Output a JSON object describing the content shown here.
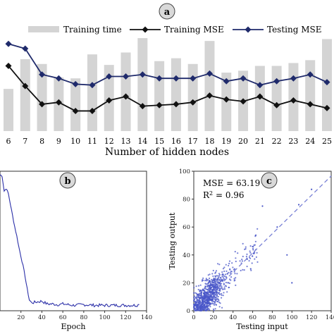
{
  "panels": {
    "a": {
      "badge": "a"
    },
    "b": {
      "badge": "b"
    },
    "c": {
      "badge": "c",
      "mse_text": "MSE = 63.19",
      "r2_prefix": "R",
      "r2_sup": "2",
      "r2_suffix": " = 0.96"
    }
  },
  "colors": {
    "bar": "#d4d4d4",
    "training_mse": "#111111",
    "testing_mse": "#1f2a6b",
    "loss_curve": "#2b2fa8",
    "scatter": "#4a57c8",
    "identity_line": "#7a82d6",
    "badge_fill": "#d9d9d9"
  },
  "chart_data": [
    {
      "id": "a",
      "type": "bar",
      "xlabel": "Number of hidden nodes",
      "ylabel": "",
      "categories": [
        "6",
        "7",
        "8",
        "9",
        "10",
        "11",
        "12",
        "13",
        "14",
        "15",
        "16",
        "17",
        "18",
        "19",
        "20",
        "21",
        "22",
        "23",
        "24",
        "25"
      ],
      "legend": [
        "Training time",
        "Training MSE",
        "Testing MSE"
      ],
      "legend_position": "top",
      "ylim": [
        0,
        100
      ],
      "series": [
        {
          "name": "Training time",
          "type": "bar",
          "values": [
            44,
            75,
            70,
            56,
            55,
            80,
            69,
            82,
            97,
            73,
            76,
            70,
            94,
            61,
            63,
            68,
            68,
            71,
            74,
            96
          ]
        },
        {
          "name": "Training MSE",
          "type": "line",
          "marker": "diamond",
          "values": [
            68,
            47,
            28,
            30,
            21,
            21,
            32,
            36,
            26,
            27,
            28,
            30,
            37,
            33,
            31,
            36,
            27,
            32,
            28,
            24
          ]
        },
        {
          "name": "Testing MSE",
          "type": "line",
          "marker": "diamond",
          "values": [
            91,
            86,
            59,
            55,
            49,
            48,
            57,
            57,
            59,
            55,
            55,
            55,
            60,
            52,
            55,
            48,
            52,
            55,
            59,
            51
          ]
        }
      ]
    },
    {
      "id": "b",
      "type": "line",
      "xlabel": "Epoch",
      "ylabel": "",
      "xlim": [
        0,
        140
      ],
      "ylim": [
        0,
        100
      ],
      "xticks": [
        "20",
        "40",
        "60",
        "80",
        "100",
        "120",
        "140"
      ],
      "series": [
        {
          "x": [
            0,
            2,
            4,
            6,
            8,
            10,
            12,
            14,
            16,
            18,
            20,
            22,
            24,
            26,
            28,
            30,
            32,
            35,
            40,
            45,
            50,
            55,
            60,
            70,
            80,
            90,
            100,
            110,
            120,
            130,
            133
          ],
          "y": [
            100,
            99,
            88,
            90,
            86,
            78,
            70,
            62,
            55,
            47,
            40,
            33,
            25,
            16,
            8,
            6,
            6,
            6.5,
            7,
            5,
            5,
            4.5,
            5,
            4,
            4.5,
            4,
            4,
            4,
            4,
            4,
            4.5
          ]
        }
      ]
    },
    {
      "id": "c",
      "type": "scatter",
      "xlabel": "Testing input",
      "ylabel": "Testing output",
      "xlim": [
        0,
        140
      ],
      "ylim": [
        0,
        100
      ],
      "xticks": [
        "0",
        "20",
        "40",
        "60",
        "80",
        "100",
        "120",
        "140"
      ],
      "yticks": [
        "0",
        "20",
        "40",
        "60",
        "80",
        "100"
      ],
      "annotations": [
        "MSE = 63.19",
        "R² = 0.96"
      ],
      "identity_line": true
    }
  ]
}
